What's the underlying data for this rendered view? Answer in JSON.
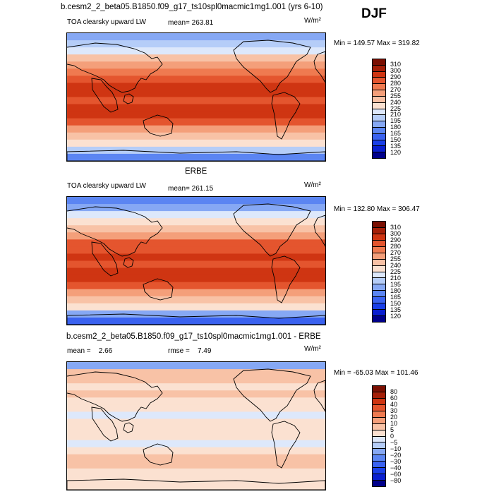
{
  "header": {
    "title": "b.cesm2_2_beta05.B1850.f09_g17_ts10spl0macmic1mg1.001 (yrs 6-10)",
    "season": "DJF"
  },
  "panels": [
    {
      "variable": "TOA clearsky upward LW",
      "mean_label": "mean= 263.81",
      "units": "W/m²",
      "minmax": "Min = 149.57 Max = 319.82"
    },
    {
      "subtitle": "ERBE",
      "variable": "TOA clearsky upward LW",
      "mean_label": "mean= 261.15",
      "units": "W/m²",
      "minmax": "Min = 132.80 Max = 306.47"
    },
    {
      "subtitle": "b.cesm2_2_beta05.B1850.f09_g17_ts10spl0macmic1mg1.001 - ERBE",
      "mean_label": "mean =    2.66",
      "rmse_label": "rmse =    7.49",
      "units": "W/m²",
      "minmax": "Min = -65.03 Max = 101.46"
    }
  ],
  "chart_data": [
    {
      "type": "heatmap",
      "title": "TOA clearsky upward LW (model)",
      "units": "W/m2",
      "mean": 263.81,
      "min": 149.57,
      "max": 319.82,
      "levels": [
        120,
        135,
        150,
        165,
        180,
        195,
        210,
        225,
        240,
        255,
        270,
        280,
        290,
        300,
        310
      ],
      "colors": [
        "#00008b",
        "#0a1fd0",
        "#1a3fe8",
        "#3a62f0",
        "#5b85f2",
        "#86a8f4",
        "#b5cdf8",
        "#dde8fb",
        "#fbe1d1",
        "#f8c2a6",
        "#f49f7a",
        "#ef7a50",
        "#e4552e",
        "#cf3512",
        "#a51f08",
        "#7a0f02"
      ],
      "zonal_profile_north_to_south": [
        185,
        205,
        222,
        240,
        255,
        270,
        282,
        290,
        294,
        288,
        291,
        292,
        283,
        268,
        248,
        230,
        200,
        175
      ]
    },
    {
      "type": "heatmap",
      "title": "TOA clearsky upward LW (ERBE)",
      "units": "W/m2",
      "mean": 261.15,
      "min": 132.8,
      "max": 306.47,
      "levels": [
        120,
        135,
        150,
        165,
        180,
        195,
        210,
        225,
        240,
        255,
        270,
        280,
        290,
        300,
        310
      ],
      "colors": [
        "#00008b",
        "#0a1fd0",
        "#1a3fe8",
        "#3a62f0",
        "#5b85f2",
        "#86a8f4",
        "#b5cdf8",
        "#dde8fb",
        "#fbe1d1",
        "#f8c2a6",
        "#f49f7a",
        "#ef7a50",
        "#e4552e",
        "#cf3512",
        "#a51f08",
        "#7a0f02"
      ],
      "zonal_profile_north_to_south": [
        172,
        190,
        210,
        232,
        250,
        268,
        280,
        288,
        292,
        287,
        290,
        291,
        282,
        266,
        245,
        226,
        190,
        160
      ]
    },
    {
      "type": "heatmap",
      "title": "model - ERBE",
      "units": "W/m2",
      "mean": 2.66,
      "rmse": 7.49,
      "min": -65.03,
      "max": 101.46,
      "levels": [
        -80,
        -60,
        -40,
        -30,
        -20,
        -10,
        -5,
        0,
        5,
        10,
        20,
        30,
        40,
        60,
        80
      ],
      "colors": [
        "#00008b",
        "#0a1fd0",
        "#1a3fe8",
        "#3a62f0",
        "#5b85f2",
        "#86a8f4",
        "#b5cdf8",
        "#dde8fb",
        "#fbe1d1",
        "#f8c2a6",
        "#f49f7a",
        "#ef7a50",
        "#e4552e",
        "#cf3512",
        "#a51f08",
        "#7a0f02"
      ],
      "zonal_profile_north_to_south": [
        -12,
        8,
        6,
        4,
        7,
        3,
        2,
        -1,
        2,
        4,
        2,
        -3,
        3,
        6,
        5,
        1,
        3,
        2
      ]
    }
  ]
}
